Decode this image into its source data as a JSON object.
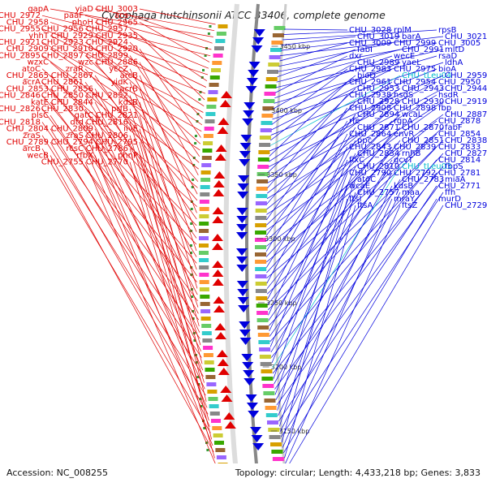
{
  "title": "Cytophaga hutchinsonii ATCC 33406, complete genome",
  "footer": {
    "accession": "Accession: NC_008255",
    "summary": "Topology: circular; Length: 4,433,218 bp; Genes: 3,833"
  },
  "colors": {
    "left_strand": "#e00000",
    "right_strand": "#0000dd",
    "rna": "#00bbcc",
    "backbone": "#888888"
  },
  "scale_labels": [
    "3450 kbp",
    "3400 kbp",
    "3350 kbp",
    "3300 kbp",
    "3250 kbp",
    "3200 kbp",
    "3150 kbp"
  ],
  "left_labels": [
    "CHU_3003",
    "yiaD",
    "gapA",
    "acs",
    "paaF",
    "CHU_2972",
    "CHU_2965",
    "phoH",
    "CHU_2958",
    "CHU_2957",
    "CHU_2956",
    "CHU_2955",
    "CHU_2935",
    "CHU_2929",
    "yhhT",
    "CHU_2924",
    "CHU_2923",
    "CHU_2921",
    "CHU_2920",
    "CHU_2910",
    "CHU_2909",
    "CHU_2899",
    "CHU_2897",
    "CHU_2895",
    "CHU_2886",
    "wzc",
    "wzxC",
    "yccZ",
    "zraR",
    "atoC",
    "arcB",
    "CHU_2867",
    "CHU_2865",
    "yidK",
    "CHU_2861",
    "acrA",
    "acrB",
    "CHU_2856",
    "CHU_2853",
    "CHU_2852",
    "CHU_2850",
    "CHU_2846",
    "kdsB",
    "CHU_2844",
    "katE",
    "prfB",
    "CHU_2830",
    "CHU_2826",
    "CHU_2821",
    "gatC",
    "plsC",
    "CHU_2816",
    "dtd",
    "CHU_2818",
    "ilvE",
    "CHU_2809",
    "CHU_2804",
    "CHU_2806",
    "zraS",
    "zraS",
    "CHU_2795",
    "CHU_2794",
    "CHU_2789",
    "CHU_2786",
    "rcsC",
    "arcB",
    "phnP",
    "rfbX",
    "wecB",
    "CHU_2770",
    "CHU_2755"
  ],
  "right_labels": [
    "CHU_3028",
    "rplM",
    "rpsB",
    "CHU_3019",
    "barA",
    "CHU_3021",
    "CHU_3009",
    "CHU_2999",
    "CHU_3005",
    "fabI",
    "CHU_2991",
    "mltD",
    "dxr",
    "wecE",
    "rsaD",
    "CHU_2989",
    "yaeL",
    "ldhA",
    "CHU_2983",
    "CHU_2975",
    "bioA",
    "bioD",
    "CHU_tLeu04",
    "CHU_2959",
    "CHU_2961",
    "CHU_2954",
    "CHU_2950",
    "CHU_2953",
    "CHU_2943",
    "CHU_2944",
    "CHU_2938",
    "hsdS",
    "hsdR",
    "CHU_2928",
    "CHU_2930",
    "CHU_2919",
    "CHU_2908",
    "CHU_2898",
    "fbp",
    "CHU_2894",
    "wcaL",
    "CHU_2887",
    "rfe",
    "rgpA",
    "CHU_2878",
    "CHU_2871",
    "CHU_2870",
    "fabF",
    "CHU_2864",
    "envR",
    "CHU_2854",
    "ppc",
    "CHU_2851",
    "CHU_2838",
    "CHU_2843",
    "CHU_2839",
    "CHU_2833",
    "CHU_2834",
    "rnhB",
    "CHU_2827",
    "fixC",
    "gcvT",
    "CHU_2814",
    "CHU_2810",
    "CHU_tLeu03",
    "fbpS",
    "CHU_2790",
    "CHU_2792",
    "CHU_2781",
    "atoC",
    "CHU_2783",
    "miaA",
    "wcaE",
    "kdsB",
    "CHU_2771",
    "CHU_2757",
    "maa",
    "ffh",
    "ftsI",
    "mraY",
    "murD",
    "ftsA",
    "ftsZ",
    "CHU_2729"
  ]
}
